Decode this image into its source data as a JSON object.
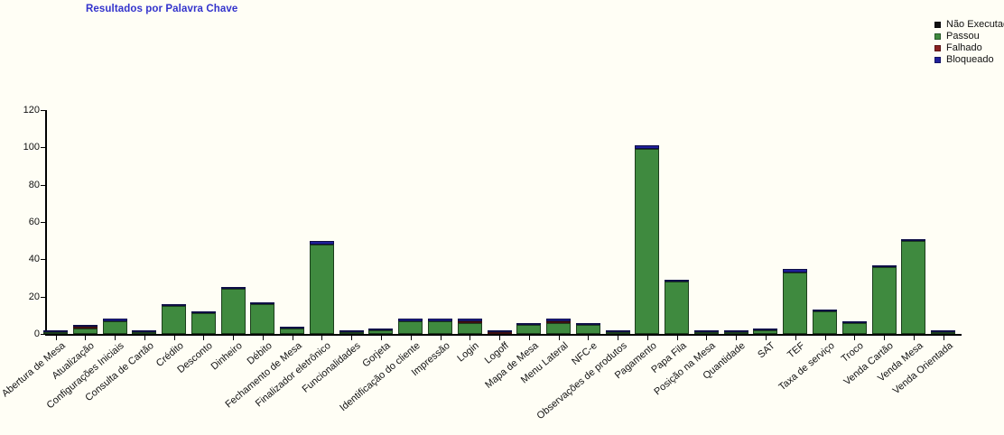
{
  "title": "Resultados por Palavra Chave",
  "colors": {
    "background": "#fffef5",
    "title": "#3333cc",
    "axis": "#000000",
    "nao_executado": "#111111",
    "passou": "#3f8a3f",
    "falhado": "#8b2222",
    "bloqueado": "#20209a"
  },
  "legend": {
    "items": [
      {
        "label": "Não Executado",
        "color": "#111111"
      },
      {
        "label": "Passou",
        "color": "#3f8a3f"
      },
      {
        "label": "Falhado",
        "color": "#8b2222"
      },
      {
        "label": "Bloqueado",
        "color": "#20209a"
      }
    ]
  },
  "chart_data": {
    "type": "bar",
    "stacked": true,
    "title": "Resultados por Palavra Chave",
    "xlabel": "",
    "ylabel": "",
    "ylim": [
      0,
      120
    ],
    "yticks": [
      0,
      20,
      40,
      60,
      80,
      100,
      120
    ],
    "grid": false,
    "legend_position": "top-right",
    "categories": [
      "Abertura de Mesa",
      "Atualização",
      "Configurações Iniciais",
      "Consulta de Cartão",
      "Crédito",
      "Desconto",
      "Dinheiro",
      "Débito",
      "Fechamento de Mesa",
      "Finalizador eletrônico",
      "Funcionalidades",
      "Gorjeta",
      "Identificação do cliente",
      "Impressão",
      "Login",
      "Logoff",
      "Mapa de Mesa",
      "Menu Lateral",
      "NFC-e",
      "Observações de produtos",
      "Pagamento",
      "Papa Fila",
      "Posição na Mesa",
      "Quantidade",
      "SAT",
      "TEF",
      "Taxa de serviço",
      "Troco",
      "Venda Cartão",
      "Venda Mesa",
      "Venda Orientada"
    ],
    "series": [
      {
        "name": "Não Executado",
        "color": "#111111",
        "values": [
          0,
          0,
          0,
          0,
          0,
          0,
          0,
          0,
          0,
          0,
          0,
          0,
          0,
          0,
          0,
          0,
          0,
          0,
          0,
          0,
          0,
          0,
          0,
          0,
          0,
          0,
          0,
          0,
          0,
          0,
          0
        ]
      },
      {
        "name": "Passou",
        "color": "#3f8a3f",
        "values": [
          1,
          3,
          7,
          1,
          15,
          11,
          24,
          16,
          3,
          48,
          1,
          2,
          7,
          7,
          6,
          0,
          5,
          6,
          5,
          1,
          99,
          28,
          1,
          1,
          2,
          33,
          12,
          6,
          36,
          50,
          1
        ]
      },
      {
        "name": "Falhado",
        "color": "#8b2222",
        "values": [
          0,
          1,
          0,
          0,
          0,
          0,
          0,
          0,
          0,
          0,
          0,
          0,
          0,
          0,
          1,
          1,
          0,
          1,
          0,
          0,
          0,
          0,
          0,
          0,
          0,
          0,
          0,
          0,
          0,
          0,
          0
        ]
      },
      {
        "name": "Bloqueado",
        "color": "#20209a",
        "values": [
          1,
          1,
          1,
          1,
          1,
          1,
          1,
          1,
          1,
          2,
          1,
          1,
          1,
          1,
          1,
          1,
          1,
          1,
          1,
          1,
          2,
          1,
          1,
          1,
          1,
          2,
          1,
          1,
          1,
          1,
          1
        ]
      }
    ]
  }
}
